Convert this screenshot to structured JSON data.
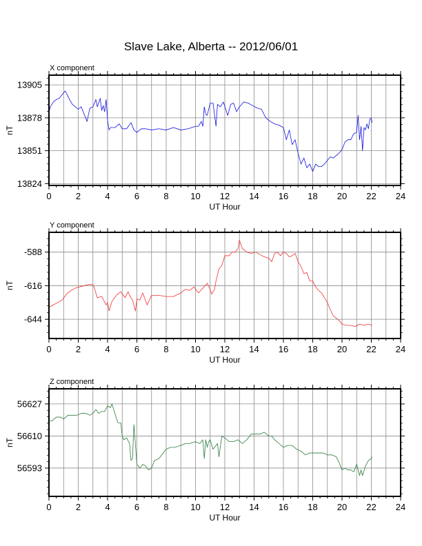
{
  "title": "Slave Lake, Alberta -- 2012/06/01",
  "chart_data": [
    {
      "type": "line",
      "title": "X component",
      "xlabel": "UT Hour",
      "ylabel": "nT",
      "xlim": [
        0,
        24
      ],
      "xticks": [
        0,
        2,
        4,
        6,
        8,
        10,
        12,
        14,
        16,
        18,
        20,
        22,
        24
      ],
      "ylim": [
        13822.5,
        13913
      ],
      "yticks": [
        13824,
        13851,
        13878,
        13905
      ],
      "grid": true,
      "color": "#1010e0",
      "series": [
        {
          "x": [
            0,
            0.1,
            0.3,
            0.5,
            0.7,
            0.9,
            1.1,
            1.2,
            1.4,
            1.6,
            1.8,
            2.0,
            2.2,
            2.4,
            2.6,
            2.7,
            2.8,
            3.0,
            3.2,
            3.3,
            3.5,
            3.6,
            3.7,
            3.8,
            3.9,
            4.0,
            4.1,
            4.2,
            4.5,
            4.8,
            5.0,
            5.3,
            5.6,
            5.8,
            6.0,
            6.3,
            6.6,
            7.0,
            7.5,
            8.0,
            8.5,
            9.0,
            9.5,
            10.0,
            10.2,
            10.4,
            10.5,
            10.6,
            10.7,
            10.8,
            11.0,
            11.2,
            11.4,
            11.5,
            11.7,
            11.9,
            12.2,
            12.4,
            12.6,
            12.8,
            13.0,
            13.3,
            13.6,
            13.9,
            14.2,
            14.5,
            14.8,
            15.1,
            15.4,
            15.7,
            16.0,
            16.2,
            16.4,
            16.6,
            16.8,
            17.0,
            17.2,
            17.4,
            17.6,
            17.8,
            18.0,
            18.2,
            18.4,
            18.6,
            18.8,
            19.0,
            19.2,
            19.4,
            19.6,
            19.8,
            20.0,
            20.2,
            20.4,
            20.6,
            20.8,
            21.0,
            21.1,
            21.2,
            21.3,
            21.4,
            21.5,
            21.6,
            21.7,
            21.8,
            21.9,
            22.0,
            22.05
          ],
          "values": [
            13883,
            13887,
            13891,
            13893,
            13894,
            13897,
            13900,
            13898,
            13893,
            13889,
            13887,
            13885,
            13887,
            13881,
            13875,
            13881,
            13886,
            13887,
            13893,
            13887,
            13894,
            13884,
            13888,
            13883,
            13893,
            13876,
            13868,
            13870,
            13870,
            13873,
            13869,
            13869,
            13874,
            13868,
            13866,
            13869,
            13869,
            13868,
            13869,
            13868,
            13870,
            13868,
            13869,
            13871,
            13871,
            13875,
            13871,
            13887,
            13881,
            13880,
            13890,
            13890,
            13871,
            13889,
            13887,
            13891,
            13880,
            13889,
            13890,
            13883,
            13887,
            13891,
            13890,
            13888,
            13886,
            13885,
            13878,
            13875,
            13873,
            13872,
            13870,
            13860,
            13868,
            13856,
            13860,
            13849,
            13840,
            13845,
            13837,
            13840,
            13834,
            13840,
            13838,
            13838,
            13840,
            13843,
            13846,
            13845,
            13847,
            13849,
            13852,
            13858,
            13860,
            13860,
            13865,
            13866,
            13880,
            13860,
            13871,
            13851,
            13870,
            13868,
            13873,
            13869,
            13877,
            13878,
            13874
          ]
        }
      ]
    },
    {
      "type": "line",
      "title": "Y component",
      "xlabel": "UT Hour",
      "ylabel": "nT",
      "xlim": [
        0,
        24
      ],
      "xticks": [
        0,
        2,
        4,
        6,
        8,
        10,
        12,
        14,
        16,
        18,
        20,
        22,
        24
      ],
      "ylim": [
        -660,
        -571.5
      ],
      "yticks": [
        -644,
        -616,
        -588
      ],
      "grid": true,
      "color": "#f03030",
      "series": [
        {
          "x": [
            0,
            0.3,
            0.6,
            0.9,
            1.2,
            1.5,
            1.8,
            2.1,
            2.4,
            2.7,
            3.0,
            3.1,
            3.3,
            3.6,
            3.9,
            4.0,
            4.1,
            4.3,
            4.6,
            4.9,
            5.2,
            5.4,
            5.5,
            5.7,
            5.9,
            6.0,
            6.2,
            6.4,
            6.7,
            7.0,
            7.5,
            8.0,
            8.5,
            9.0,
            9.3,
            9.6,
            9.9,
            10.2,
            10.5,
            10.8,
            11.0,
            11.1,
            11.3,
            11.4,
            11.6,
            11.8,
            12.0,
            12.3,
            12.5,
            12.7,
            12.9,
            13.0,
            13.2,
            13.5,
            13.8,
            14.1,
            14.4,
            14.7,
            15.0,
            15.2,
            15.4,
            15.6,
            15.8,
            16.0,
            16.2,
            16.4,
            16.6,
            16.8,
            17.0,
            17.2,
            17.4,
            17.6,
            17.8,
            18.0,
            18.2,
            18.4,
            18.6,
            18.8,
            19.0,
            19.2,
            19.4,
            19.6,
            19.8,
            20.0,
            20.3,
            20.6,
            20.9,
            21.2,
            21.5,
            21.8,
            22.05
          ],
          "values": [
            -634,
            -632,
            -630,
            -628,
            -623,
            -620,
            -618,
            -617,
            -616,
            -615,
            -615,
            -618,
            -626,
            -625,
            -632,
            -630,
            -637,
            -629,
            -624,
            -621,
            -626,
            -621,
            -624,
            -628,
            -637,
            -627,
            -628,
            -622,
            -632,
            -624,
            -624,
            -625,
            -625,
            -622,
            -619,
            -620,
            -617,
            -622,
            -618,
            -614,
            -619,
            -623,
            -619,
            -612,
            -602,
            -599,
            -591,
            -591,
            -588,
            -588,
            -585,
            -578,
            -585,
            -588,
            -589,
            -588,
            -590,
            -592,
            -593,
            -596,
            -589,
            -588,
            -591,
            -588,
            -589,
            -592,
            -591,
            -589,
            -596,
            -600,
            -606,
            -605,
            -612,
            -612,
            -617,
            -620,
            -622,
            -626,
            -630,
            -636,
            -641,
            -643,
            -645,
            -648,
            -649,
            -649,
            -650,
            -648,
            -649,
            -648,
            -649
          ]
        }
      ]
    },
    {
      "type": "line",
      "title": "Z component",
      "xlabel": "UT Hour",
      "ylabel": "nT",
      "xlim": [
        0,
        24
      ],
      "xticks": [
        0,
        2,
        4,
        6,
        8,
        10,
        12,
        14,
        16,
        18,
        20,
        22,
        24
      ],
      "ylim": [
        56578,
        56635
      ],
      "yticks": [
        56593,
        56610,
        56627
      ],
      "grid": true,
      "color": "#2a7a3a",
      "series": [
        {
          "x": [
            0,
            0.2,
            0.5,
            0.8,
            1.0,
            1.3,
            1.6,
            1.9,
            2.2,
            2.5,
            2.8,
            3.0,
            3.2,
            3.4,
            3.6,
            3.8,
            4.0,
            4.2,
            4.3,
            4.5,
            4.7,
            4.9,
            5.0,
            5.1,
            5.3,
            5.5,
            5.6,
            5.7,
            5.8,
            6.0,
            6.2,
            6.4,
            6.6,
            6.8,
            7.0,
            7.2,
            7.5,
            7.8,
            8.0,
            8.3,
            8.6,
            9.0,
            9.3,
            9.6,
            10.0,
            10.3,
            10.5,
            10.6,
            10.7,
            10.8,
            10.9,
            11.0,
            11.2,
            11.5,
            11.6,
            11.8,
            12.0,
            12.3,
            12.6,
            12.9,
            13.2,
            13.5,
            13.8,
            14.1,
            14.4,
            14.7,
            15.0,
            15.2,
            15.4,
            15.7,
            16.0,
            16.3,
            16.6,
            16.9,
            17.2,
            17.5,
            17.8,
            18.1,
            18.4,
            18.7,
            19.0,
            19.3,
            19.6,
            19.8,
            20.0,
            20.2,
            20.4,
            20.6,
            20.8,
            21.0,
            21.2,
            21.3,
            21.4,
            21.6,
            21.8,
            22.0,
            22.05
          ],
          "values": [
            56618,
            56618,
            56620,
            56620,
            56619,
            56621,
            56621,
            56621,
            56622,
            56622,
            56621,
            56622,
            56624,
            56622,
            56623,
            56623,
            56626,
            56625,
            56627,
            56622,
            56617,
            56617,
            56610,
            56608,
            56609,
            56606,
            56597,
            56598,
            56616,
            56595,
            56593,
            56595,
            56594,
            56592,
            56593,
            56597,
            56598,
            56601,
            56603,
            56604,
            56604,
            56605,
            56606,
            56606,
            56607,
            56606,
            56608,
            56598,
            56608,
            56604,
            56607,
            56608,
            56603,
            56606,
            56599,
            56610,
            56609,
            56607,
            56607,
            56608,
            56606,
            56608,
            56611,
            56611,
            56611,
            56612,
            56610,
            56610,
            56608,
            56606,
            56604,
            56605,
            56605,
            56603,
            56602,
            56600,
            56601,
            56601,
            56601,
            56601,
            56600,
            56600,
            56599,
            56596,
            56592,
            56593,
            56592,
            56592,
            56591,
            56595,
            56589,
            56592,
            56589,
            56594,
            56597,
            56598,
            56599
          ]
        }
      ]
    }
  ]
}
